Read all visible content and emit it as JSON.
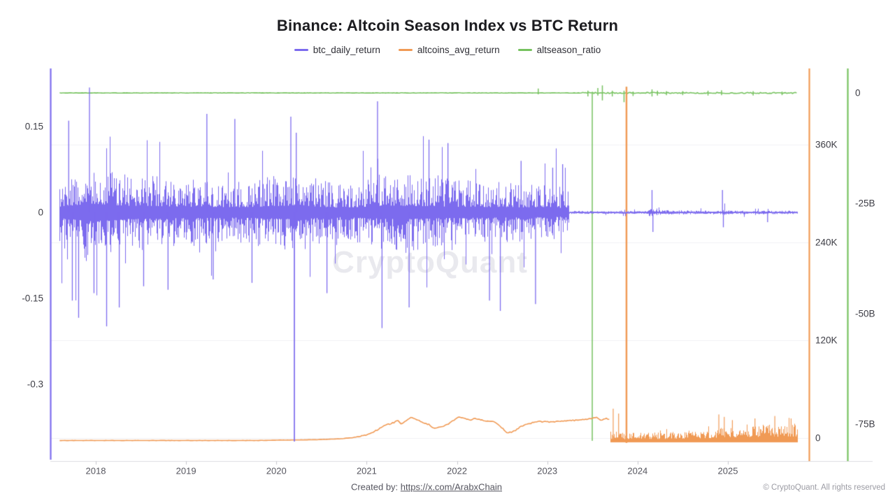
{
  "title": "Binance: Altcoin Season Index vs BTC Return",
  "watermark": "CryptoQuant",
  "colors": {
    "btc": "#7c6bee",
    "alt": "#f09a55",
    "ratio": "#76c25f",
    "grid": "#f0f0f4",
    "axis_line": "#dcdce0",
    "tick_mark": "#c9c9cf"
  },
  "legend": [
    {
      "label": "btc_daily_return",
      "color": "#7c6bee"
    },
    {
      "label": "altcoins_avg_return",
      "color": "#f09a55"
    },
    {
      "label": "altseason_ratio",
      "color": "#76c25f"
    }
  ],
  "footer": {
    "created_by_prefix": "Created by: ",
    "link_text": "https://x.com/ArabxChain",
    "copyright": "© CryptoQuant. All rights reserved"
  },
  "chart_data": {
    "type": "line",
    "title": "Binance: Altcoin Season Index vs BTC Return",
    "x_axis": {
      "range_years": [
        2017.5,
        2025.85
      ],
      "ticks": [
        {
          "v": 2018,
          "label": "2018"
        },
        {
          "v": 2019,
          "label": "2019"
        },
        {
          "v": 2020,
          "label": "2020"
        },
        {
          "v": 2021,
          "label": "2021"
        },
        {
          "v": 2022,
          "label": "2022"
        },
        {
          "v": 2023,
          "label": "2023"
        },
        {
          "v": 2024,
          "label": "2024"
        },
        {
          "v": 2025,
          "label": "2025"
        }
      ]
    },
    "y_axes": {
      "left": {
        "series": "btc_daily_return",
        "range": [
          0.25,
          -0.43
        ],
        "ticks": [
          {
            "v": 0.15,
            "label": "0.15"
          },
          {
            "v": 0,
            "label": "0"
          },
          {
            "v": -0.15,
            "label": "-0.15"
          },
          {
            "v": -0.3,
            "label": "-0.3"
          }
        ]
      },
      "right_inner": {
        "series": "altcoins_avg_return",
        "units": "thousands",
        "range": [
          453,
          -28
        ],
        "ticks": [
          {
            "v": 360,
            "label": "360K"
          },
          {
            "v": 240,
            "label": "240K"
          },
          {
            "v": 120,
            "label": "120K"
          },
          {
            "v": 0,
            "label": "0"
          }
        ]
      },
      "right_outer": {
        "series": "altseason_ratio",
        "units": "billions",
        "range": [
          5.5,
          -83.4
        ],
        "ticks": [
          {
            "v": 0,
            "label": "0"
          },
          {
            "v": -25,
            "label": "-25B"
          },
          {
            "v": -50,
            "label": "-50B"
          },
          {
            "v": -75,
            "label": "-75B"
          }
        ]
      }
    },
    "series": [
      {
        "name": "btc_daily_return",
        "axis": "left",
        "style": "dense-oscillation-around-zero",
        "baseline": 0,
        "amplitude_envelope": [
          [
            2017.6,
            0.055
          ],
          [
            2017.95,
            0.085
          ],
          [
            2018.3,
            0.065
          ],
          [
            2019.0,
            0.055
          ],
          [
            2019.6,
            0.05
          ],
          [
            2020.2,
            0.065
          ],
          [
            2020.7,
            0.045
          ],
          [
            2021.3,
            0.065
          ],
          [
            2021.9,
            0.055
          ],
          [
            2022.5,
            0.05
          ],
          [
            2023.0,
            0.045
          ],
          [
            2023.23,
            0.04
          ],
          [
            2023.24,
            0.0025
          ],
          [
            2024.1,
            0.0025
          ],
          [
            2024.16,
            0.011
          ],
          [
            2024.24,
            0.004
          ],
          [
            2024.9,
            0.0025
          ],
          [
            2024.96,
            0.006
          ],
          [
            2025.05,
            0.003
          ],
          [
            2025.77,
            0.003
          ]
        ],
        "notable_spikes": [
          [
            2017.7,
            0.16
          ],
          [
            2017.74,
            -0.154
          ],
          [
            2017.81,
            -0.184
          ],
          [
            2017.93,
            0.218
          ],
          [
            2017.98,
            -0.141
          ],
          [
            2018.12,
            -0.199
          ],
          [
            2018.26,
            -0.166
          ],
          [
            2018.53,
            -0.129
          ],
          [
            2018.8,
            -0.135
          ],
          [
            2019.23,
            0.172
          ],
          [
            2019.3,
            -0.117
          ],
          [
            2019.54,
            0.163
          ],
          [
            2019.73,
            -0.123
          ],
          [
            2020.16,
            0.167
          ],
          [
            2020.199,
            -0.4
          ],
          [
            2020.22,
            0.139
          ],
          [
            2020.56,
            -0.141
          ],
          [
            2021.12,
            0.194
          ],
          [
            2021.17,
            -0.202
          ],
          [
            2021.47,
            -0.166
          ],
          [
            2021.69,
            0.127
          ],
          [
            2021.9,
            0.121
          ],
          [
            2022.36,
            -0.154
          ],
          [
            2022.48,
            -0.172
          ],
          [
            2022.71,
            0.09
          ],
          [
            2022.87,
            -0.16
          ],
          [
            2023.06,
            0.078
          ],
          [
            2023.17,
            0.084
          ],
          [
            2024.16,
            0.039
          ],
          [
            2024.17,
            -0.034
          ],
          [
            2024.94,
            0.039
          ],
          [
            2024.95,
            -0.026
          ],
          [
            2025.44,
            -0.017
          ]
        ],
        "quiet_after_year": 2023.24
      },
      {
        "name": "altcoins_avg_return",
        "axis": "right_inner",
        "style": "smooth-line-then-noise-band",
        "line_keyframes_k": [
          [
            2017.6,
            -3
          ],
          [
            2019.8,
            -3
          ],
          [
            2020.1,
            -2.5
          ],
          [
            2020.45,
            -2
          ],
          [
            2020.7,
            -1
          ],
          [
            2020.85,
            0.5
          ],
          [
            2021.0,
            4
          ],
          [
            2021.1,
            9
          ],
          [
            2021.2,
            15
          ],
          [
            2021.3,
            19
          ],
          [
            2021.34,
            22
          ],
          [
            2021.38,
            17
          ],
          [
            2021.45,
            22
          ],
          [
            2021.5,
            26
          ],
          [
            2021.56,
            22
          ],
          [
            2021.62,
            19
          ],
          [
            2021.68,
            17
          ],
          [
            2021.75,
            12
          ],
          [
            2021.82,
            14
          ],
          [
            2021.9,
            17
          ],
          [
            2021.97,
            22
          ],
          [
            2022.03,
            26
          ],
          [
            2022.08,
            24
          ],
          [
            2022.14,
            22
          ],
          [
            2022.2,
            24
          ],
          [
            2022.3,
            21
          ],
          [
            2022.42,
            20
          ],
          [
            2022.5,
            12
          ],
          [
            2022.56,
            6
          ],
          [
            2022.63,
            8
          ],
          [
            2022.7,
            14
          ],
          [
            2022.8,
            18
          ],
          [
            2022.9,
            20
          ],
          [
            2023.05,
            20
          ],
          [
            2023.2,
            21
          ],
          [
            2023.35,
            22
          ],
          [
            2023.48,
            24
          ],
          [
            2023.55,
            25
          ],
          [
            2023.6,
            22
          ],
          [
            2023.66,
            24
          ],
          [
            2023.69,
            22
          ]
        ],
        "noise_band": {
          "start_year": 2023.7,
          "end_year": 2025.77,
          "base_k": -5,
          "top_envelope_k": [
            [
              2023.7,
              8
            ],
            [
              2023.9,
              7
            ],
            [
              2024.3,
              8
            ],
            [
              2024.7,
              10
            ],
            [
              2025.0,
              14
            ],
            [
              2025.3,
              16
            ],
            [
              2025.77,
              18
            ]
          ],
          "spikes_k": [
            [
              2023.73,
              36
            ],
            [
              2023.79,
              30
            ],
            [
              2024.9,
              29
            ],
            [
              2024.96,
              26
            ],
            [
              2025.05,
              22
            ],
            [
              2025.3,
              24
            ],
            [
              2025.52,
              27
            ],
            [
              2025.7,
              24
            ]
          ]
        },
        "vertical_spike": {
          "year": 2023.877,
          "from_k": -6,
          "to_k": 431
        }
      },
      {
        "name": "altseason_ratio",
        "axis": "right_outer",
        "style": "flat-line-with-spikes",
        "baseline_b": 0,
        "wobble_increase_year": 2023.3,
        "spikes_b": [
          [
            2022.9,
            1.0,
            -0.3
          ],
          [
            2023.45,
            0.5,
            -0.8
          ],
          [
            2023.498,
            0,
            -78.8
          ],
          [
            2023.56,
            1.1,
            -0.6
          ],
          [
            2023.61,
            1.7,
            -1.7
          ],
          [
            2023.72,
            0.5,
            -0.8
          ],
          [
            2023.85,
            0.5,
            -2.1
          ],
          [
            2023.877,
            1.4,
            -0.3
          ],
          [
            2023.95,
            0.3,
            -0.7
          ],
          [
            2024.16,
            0.8,
            -0.8
          ],
          [
            2024.22,
            0.5,
            -0.6
          ],
          [
            2024.32,
            0.4,
            -0.5
          ],
          [
            2024.5,
            0.4,
            -0.5
          ],
          [
            2024.78,
            0.5,
            -0.6
          ],
          [
            2024.93,
            0.6,
            -0.5
          ],
          [
            2025.28,
            0.4,
            -0.6
          ],
          [
            2025.6,
            0.3,
            -0.5
          ]
        ],
        "data_start_year": 2017.6,
        "data_end_year": 2025.77
      }
    ],
    "legend_position": "top-center",
    "grid": "horizontal-faint"
  }
}
